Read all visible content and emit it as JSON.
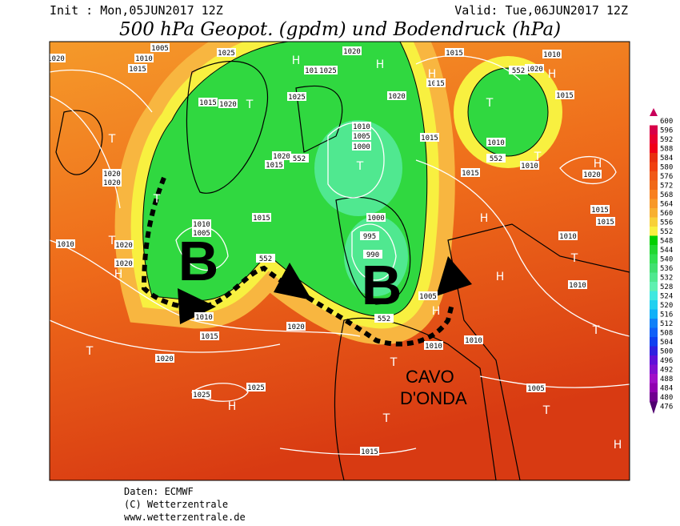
{
  "header": {
    "init": "Init : Mon,05JUN2017 12Z",
    "valid": "Valid: Tue,06JUN2017 12Z",
    "title": "500 hPa Geopot. (gpdm) und Bodendruck (hPa)"
  },
  "annotations": {
    "low_west": "B",
    "low_east": "B",
    "trough_lines": [
      "CAVO",
      "D'ONDA"
    ]
  },
  "map_labels": {
    "isobars": [
      "1020",
      "1010",
      "1005",
      "1015",
      "1025",
      "1020",
      "1010",
      "1025",
      "1015",
      "1010",
      "1020",
      "1015",
      "1020",
      "1015",
      "1015",
      "1020",
      "1025",
      "1010",
      "1005",
      "1000",
      "1015",
      "1020",
      "1015",
      "552",
      "1010",
      "1010",
      "552",
      "552",
      "1015",
      "1020",
      "1020",
      "1020",
      "1015",
      "1000",
      "1015",
      "1015",
      "1010",
      "1005",
      "995",
      "1010",
      "1020",
      "1010",
      "990",
      "1020",
      "552",
      "1010",
      "1005",
      "552",
      "1010",
      "1015",
      "1020",
      "1010",
      "1010",
      "1020",
      "1025",
      "1025",
      "1005",
      "1015"
    ],
    "centers": [
      "H",
      "H",
      "H",
      "H",
      "T",
      "T",
      "T",
      "T",
      "T",
      "T",
      "H",
      "H",
      "T",
      "H",
      "T",
      "H",
      "T",
      "T",
      "H",
      "T",
      "T",
      "T",
      "H",
      "T",
      "H"
    ]
  },
  "colorbar": [
    {
      "value": 600,
      "color": "#c8005a"
    },
    {
      "value": 596,
      "color": "#d80048"
    },
    {
      "value": 592,
      "color": "#e80030"
    },
    {
      "value": 588,
      "color": "#f00018"
    },
    {
      "value": 584,
      "color": "#e83010"
    },
    {
      "value": 580,
      "color": "#f04010"
    },
    {
      "value": 576,
      "color": "#f05818"
    },
    {
      "value": 572,
      "color": "#f06818"
    },
    {
      "value": 568,
      "color": "#f88020"
    },
    {
      "value": 564,
      "color": "#f89828"
    },
    {
      "value": 560,
      "color": "#f8b030"
    },
    {
      "value": 556,
      "color": "#f8d038"
    },
    {
      "value": 552,
      "color": "#f8f040"
    },
    {
      "value": 548,
      "color": "#00d000"
    },
    {
      "value": 544,
      "color": "#20d830"
    },
    {
      "value": 540,
      "color": "#30e050"
    },
    {
      "value": 536,
      "color": "#40e070"
    },
    {
      "value": 532,
      "color": "#50e890"
    },
    {
      "value": 528,
      "color": "#60f0b0"
    },
    {
      "value": 524,
      "color": "#40e8e0"
    },
    {
      "value": 520,
      "color": "#20d0f0"
    },
    {
      "value": 516,
      "color": "#10b0f8"
    },
    {
      "value": 512,
      "color": "#1080f8"
    },
    {
      "value": 508,
      "color": "#1060f8"
    },
    {
      "value": 504,
      "color": "#1040f0"
    },
    {
      "value": 500,
      "color": "#3020e0"
    },
    {
      "value": 496,
      "color": "#6010d8"
    },
    {
      "value": 492,
      "color": "#8010d0"
    },
    {
      "value": 488,
      "color": "#a010c8"
    },
    {
      "value": 484,
      "color": "#9000b0"
    },
    {
      "value": 480,
      "color": "#700090"
    },
    {
      "value": 476,
      "color": "#500070"
    }
  ],
  "footer": {
    "source": "Daten: ECMWF",
    "copyright": "(C) Wetterzentrale",
    "url": "www.wetterzentrale.de"
  }
}
